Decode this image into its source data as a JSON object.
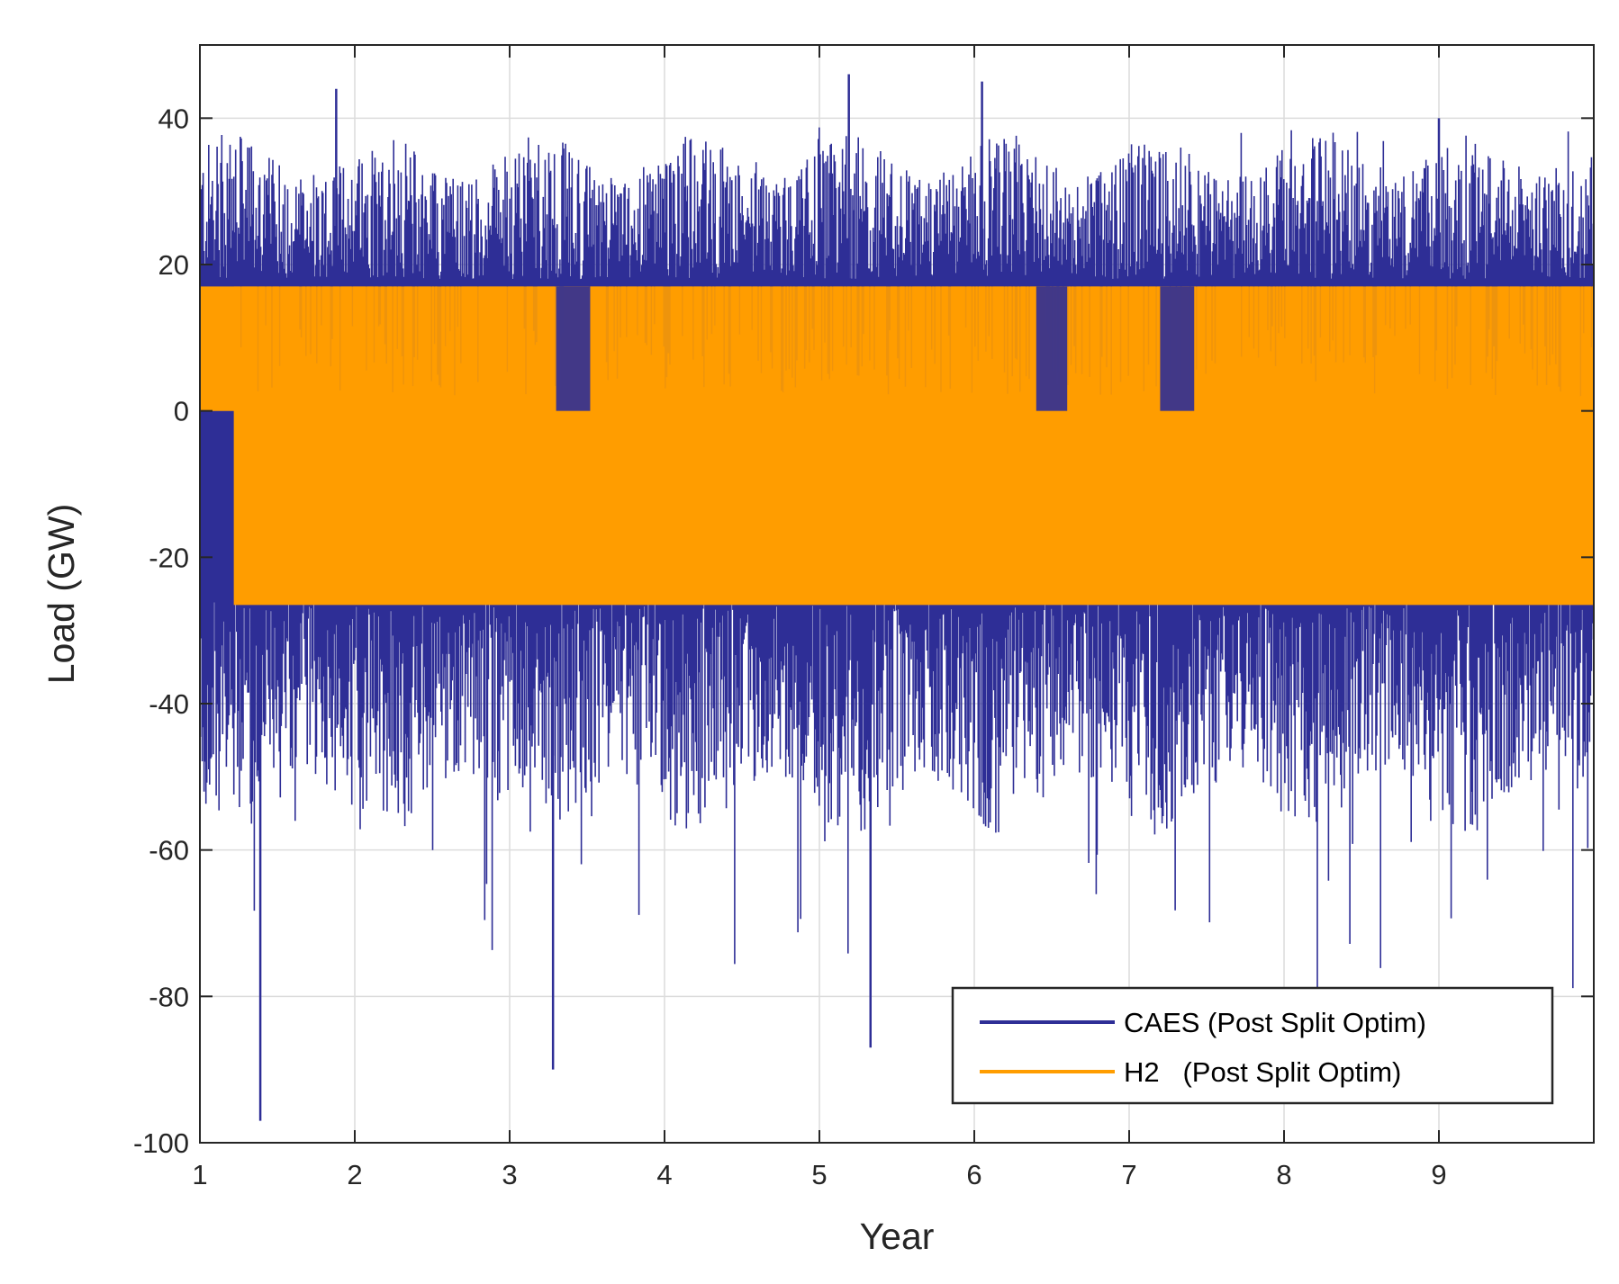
{
  "chart_data": {
    "type": "line",
    "title": "",
    "xlabel": "Year",
    "ylabel": "Load (GW)",
    "xlim": [
      1,
      10
    ],
    "ylim": [
      -100,
      50
    ],
    "xticks": [
      1,
      2,
      3,
      4,
      5,
      6,
      7,
      8,
      9
    ],
    "xtick_labels": [
      "1",
      "2",
      "3",
      "4",
      "5",
      "6",
      "7",
      "8",
      "9"
    ],
    "yticks": [
      -100,
      -80,
      -60,
      -40,
      -20,
      0,
      20,
      40
    ],
    "ytick_labels": [
      "-100",
      "-80",
      "-60",
      "-40",
      "-20",
      "0",
      "20",
      "40"
    ],
    "grid": true,
    "legend_position": "bottom-right",
    "series": [
      {
        "name": "CAES (Post Split Optim)",
        "color": "#2e2e96",
        "envelope_min": -97,
        "envelope_max": 46,
        "typical_range": [
          -50,
          32
        ],
        "notable_peaks": [
          {
            "x": 1.39,
            "y": -97
          },
          {
            "x": 1.88,
            "y": 44
          },
          {
            "x": 3.28,
            "y": -90
          },
          {
            "x": 5.19,
            "y": 46
          },
          {
            "x": 5.33,
            "y": -87
          },
          {
            "x": 6.05,
            "y": 45
          },
          {
            "x": 9.0,
            "y": 40
          }
        ]
      },
      {
        "name": "H2   (Post Split Optim)",
        "color": "#ff9d00",
        "upper_limit": 17,
        "lower_limit": -26.5,
        "typical_range": [
          -26.5,
          17
        ]
      }
    ]
  }
}
